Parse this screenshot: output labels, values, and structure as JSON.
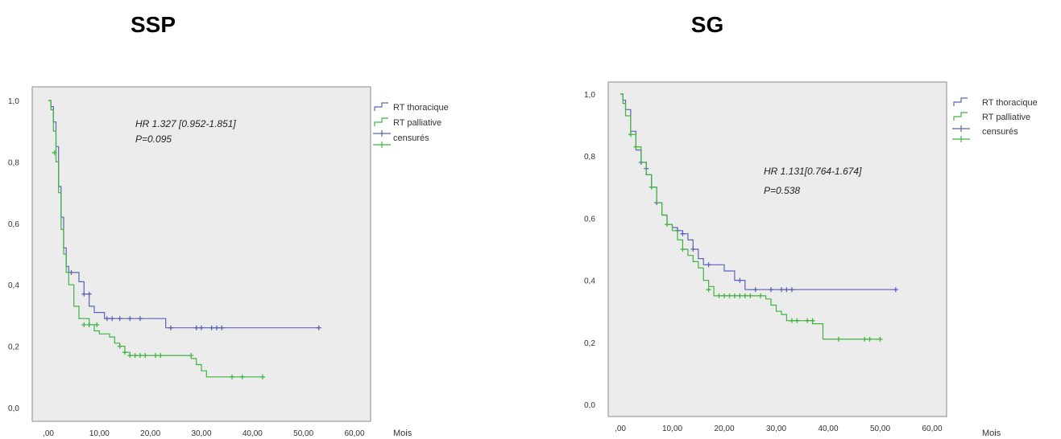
{
  "chart_data": [
    {
      "type": "line",
      "title": "SSP",
      "xlabel": "Mois",
      "ylabel": "",
      "xlim": [
        0,
        60
      ],
      "ylim": [
        0,
        1
      ],
      "xticks": [
        ",00",
        "10,00",
        "20,00",
        "30,00",
        "40,00",
        "50,00",
        "60,00"
      ],
      "yticks": [
        "0,0",
        "0,2",
        "0,4",
        "0,6",
        "0,8",
        "1,0"
      ],
      "grid": false,
      "legend_position": "right",
      "legend": [
        "RT thoracique",
        "RT palliative",
        "censurés",
        "censurés"
      ],
      "annotations": [
        "HR 1.327 [0.952-1.851]",
        "P=0.095"
      ],
      "series": [
        {
          "name": "RT thoracique",
          "color": "#5b63b8",
          "x": [
            0,
            0.5,
            1.0,
            1.5,
            2.0,
            2.5,
            3.0,
            3.5,
            4.0,
            6.0,
            7.0,
            8.0,
            9.0,
            11.0,
            23.0,
            53.0
          ],
          "y": [
            1.0,
            0.98,
            0.93,
            0.85,
            0.72,
            0.62,
            0.52,
            0.46,
            0.44,
            0.41,
            0.37,
            0.33,
            0.31,
            0.29,
            0.26,
            0.26
          ],
          "censored": [
            [
              4.5,
              0.44
            ],
            [
              7.0,
              0.37
            ],
            [
              8.0,
              0.37
            ],
            [
              11.5,
              0.29
            ],
            [
              12.5,
              0.29
            ],
            [
              14.0,
              0.29
            ],
            [
              16.0,
              0.29
            ],
            [
              18.0,
              0.29
            ],
            [
              24.0,
              0.26
            ],
            [
              29.0,
              0.26
            ],
            [
              30.0,
              0.26
            ],
            [
              32.0,
              0.26
            ],
            [
              33.0,
              0.26
            ],
            [
              34.0,
              0.26
            ],
            [
              53.0,
              0.26
            ]
          ]
        },
        {
          "name": "RT palliative",
          "color": "#3fb43f",
          "x": [
            0,
            0.5,
            1.0,
            1.5,
            2.0,
            2.5,
            3.0,
            3.5,
            4.0,
            5.0,
            6.0,
            8.0,
            9.0,
            10.0,
            12.0,
            13.0,
            14.0,
            15.0,
            16.0,
            28.0,
            29.0,
            30.0,
            31.0,
            42.0
          ],
          "y": [
            1.0,
            0.97,
            0.9,
            0.8,
            0.7,
            0.58,
            0.5,
            0.44,
            0.4,
            0.33,
            0.29,
            0.27,
            0.25,
            0.24,
            0.23,
            0.21,
            0.2,
            0.18,
            0.17,
            0.16,
            0.14,
            0.12,
            0.1,
            0.1
          ],
          "censored": [
            [
              1.2,
              0.83
            ],
            [
              7.0,
              0.27
            ],
            [
              8.0,
              0.27
            ],
            [
              9.5,
              0.27
            ],
            [
              14.0,
              0.2
            ],
            [
              15.0,
              0.18
            ],
            [
              16.0,
              0.17
            ],
            [
              17.0,
              0.17
            ],
            [
              18.0,
              0.17
            ],
            [
              19.0,
              0.17
            ],
            [
              21.0,
              0.17
            ],
            [
              22.0,
              0.17
            ],
            [
              28.0,
              0.17
            ],
            [
              36.0,
              0.1
            ],
            [
              38.0,
              0.1
            ],
            [
              42.0,
              0.1
            ]
          ]
        }
      ]
    },
    {
      "type": "line",
      "title": "SG",
      "xlabel": "Mois",
      "ylabel": "",
      "xlim": [
        0,
        60
      ],
      "ylim": [
        0,
        1
      ],
      "xticks": [
        ",00",
        "10,00",
        "20,00",
        "30,00",
        "40,00",
        "50,00",
        "60,00"
      ],
      "yticks": [
        "0,0",
        "0,2",
        "0,4",
        "0,6",
        "0,8",
        "1,0"
      ],
      "grid": false,
      "legend_position": "right",
      "legend": [
        "RT thoracique",
        "RT palliative",
        "censurés",
        "censurés"
      ],
      "annotations": [
        "HR 1.131[0.764-1.674]",
        "P=0.538"
      ],
      "series": [
        {
          "name": "RT thoracique",
          "color": "#5b63b8",
          "x": [
            0,
            0.5,
            1.0,
            2.0,
            3.0,
            4.0,
            5.0,
            6.0,
            7.0,
            8.0,
            9.0,
            10.0,
            11.0,
            12.0,
            13.0,
            14.0,
            15.0,
            16.0,
            20.0,
            22.0,
            24.0,
            53.0
          ],
          "y": [
            1.0,
            0.98,
            0.95,
            0.88,
            0.82,
            0.78,
            0.74,
            0.7,
            0.65,
            0.61,
            0.58,
            0.57,
            0.56,
            0.55,
            0.53,
            0.5,
            0.47,
            0.45,
            0.43,
            0.4,
            0.37,
            0.37
          ],
          "censored": [
            [
              4.0,
              0.78
            ],
            [
              5.0,
              0.76
            ],
            [
              7.0,
              0.65
            ],
            [
              11.0,
              0.56
            ],
            [
              12.0,
              0.55
            ],
            [
              14.0,
              0.5
            ],
            [
              17.0,
              0.45
            ],
            [
              23.0,
              0.4
            ],
            [
              26.0,
              0.37
            ],
            [
              29.0,
              0.37
            ],
            [
              31.0,
              0.37
            ],
            [
              32.0,
              0.37
            ],
            [
              33.0,
              0.37
            ],
            [
              53.0,
              0.37
            ]
          ]
        },
        {
          "name": "RT palliative",
          "color": "#3fb43f",
          "x": [
            0,
            0.5,
            1.0,
            2.0,
            3.0,
            4.0,
            5.0,
            6.0,
            7.0,
            8.0,
            9.0,
            10.0,
            11.0,
            12.0,
            13.0,
            14.0,
            15.0,
            16.0,
            17.0,
            18.0,
            28.0,
            29.0,
            30.0,
            31.0,
            32.0,
            37.0,
            39.0,
            50.0
          ],
          "y": [
            1.0,
            0.97,
            0.93,
            0.87,
            0.83,
            0.78,
            0.74,
            0.7,
            0.65,
            0.61,
            0.58,
            0.56,
            0.53,
            0.5,
            0.48,
            0.46,
            0.44,
            0.4,
            0.38,
            0.35,
            0.34,
            0.32,
            0.3,
            0.29,
            0.27,
            0.26,
            0.21,
            0.21
          ],
          "censored": [
            [
              2.0,
              0.87
            ],
            [
              3.0,
              0.83
            ],
            [
              6.0,
              0.7
            ],
            [
              9.0,
              0.58
            ],
            [
              12.0,
              0.5
            ],
            [
              17.0,
              0.37
            ],
            [
              19.0,
              0.35
            ],
            [
              20.0,
              0.35
            ],
            [
              21.0,
              0.35
            ],
            [
              22.0,
              0.35
            ],
            [
              23.0,
              0.35
            ],
            [
              24.0,
              0.35
            ],
            [
              25.0,
              0.35
            ],
            [
              27.0,
              0.35
            ],
            [
              33.0,
              0.27
            ],
            [
              34.0,
              0.27
            ],
            [
              36.0,
              0.27
            ],
            [
              37.0,
              0.27
            ],
            [
              42.0,
              0.21
            ],
            [
              47.0,
              0.21
            ],
            [
              48.0,
              0.21
            ],
            [
              50.0,
              0.21
            ]
          ]
        }
      ]
    }
  ]
}
